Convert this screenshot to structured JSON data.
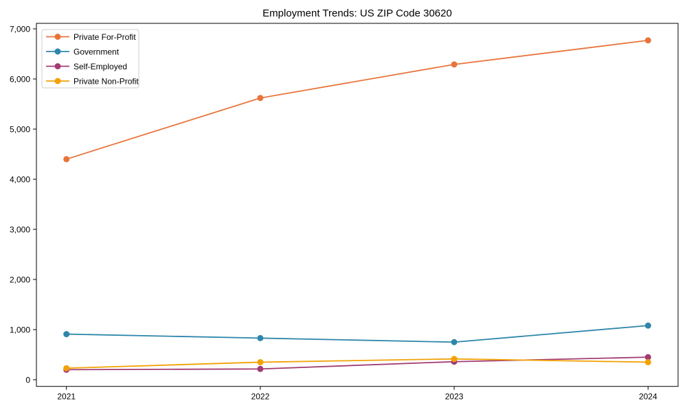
{
  "chart_data": {
    "type": "line",
    "title": "Employment Trends: US ZIP Code 30620",
    "categories": [
      "2021",
      "2022",
      "2023",
      "2024"
    ],
    "series": [
      {
        "name": "Private For-Profit",
        "color": "#E8743B",
        "values": [
          4400,
          5620,
          6290,
          6770
        ]
      },
      {
        "name": "Government",
        "color": "#2E86AB",
        "values": [
          910,
          830,
          750,
          1080
        ]
      },
      {
        "name": "Self-Employed",
        "color": "#A23B72",
        "values": [
          200,
          215,
          360,
          450
        ]
      },
      {
        "name": "Private Non-Profit",
        "color": "#F2A104",
        "values": [
          230,
          350,
          415,
          350
        ]
      }
    ],
    "ylim": [
      0,
      7000
    ],
    "yticks": [
      0,
      1000,
      2000,
      3000,
      4000,
      5000,
      6000,
      7000
    ],
    "ytick_labels": [
      "0",
      "1,000",
      "2,000",
      "3,000",
      "4,000",
      "5,000",
      "6,000",
      "7,000"
    ],
    "grid": false,
    "legend_position": "upper left",
    "marker": "circle",
    "axis_color": "#000000",
    "legend_border_color": "#cccccc",
    "background_color": "#ffffff"
  }
}
